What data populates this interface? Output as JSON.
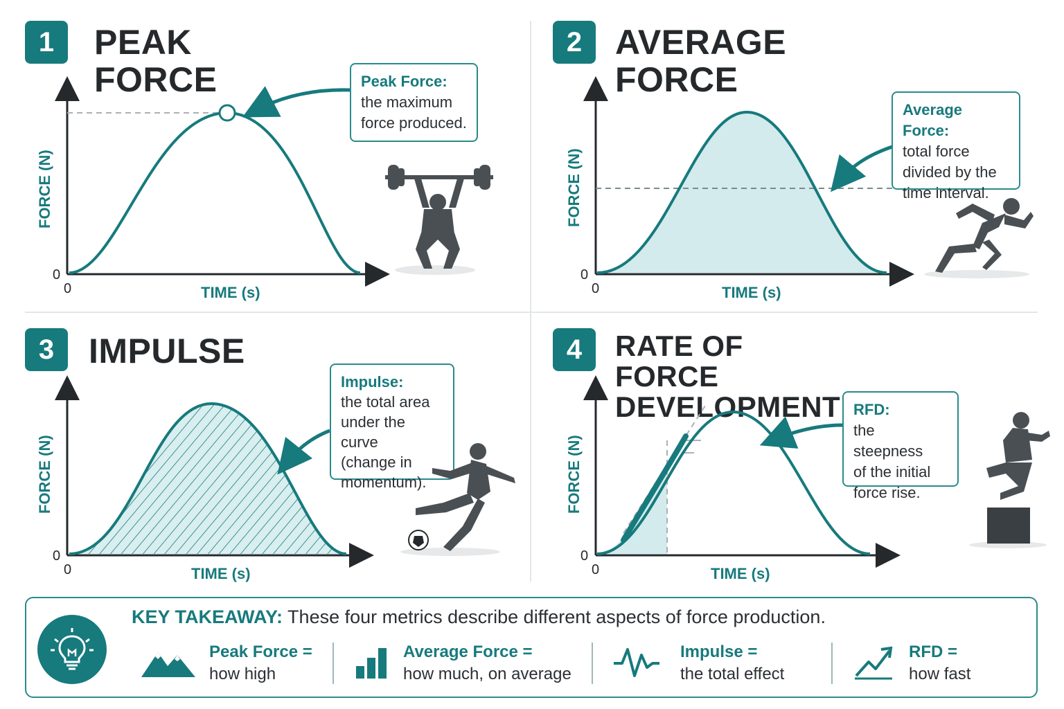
{
  "panels": [
    {
      "number": "1",
      "title": "PEAK FORCE",
      "y_label": "FORCE (N)",
      "x_label": "TIME (s)",
      "origin_y": "0",
      "origin_x": "0",
      "callout": {
        "title": "Peak Force:",
        "lines": [
          "the maximum",
          "force produced."
        ]
      },
      "athlete_icon": "weightlifter-icon"
    },
    {
      "number": "2",
      "title": "AVERAGE FORCE",
      "y_label": "FORCE (N)",
      "x_label": "TIME (s)",
      "origin_y": "0",
      "origin_x": "0",
      "callout": {
        "title": "Average Force:",
        "lines": [
          "total force",
          "divided by the",
          "time interval."
        ]
      },
      "athlete_icon": "sprinter-icon"
    },
    {
      "number": "3",
      "title": "IMPULSE",
      "y_label": "FORCE (N)",
      "x_label": "TIME (s)",
      "origin_y": "0",
      "origin_x": "0",
      "callout": {
        "title": "Impulse:",
        "lines": [
          "the total area",
          "under the curve",
          "(change in",
          "momentum)."
        ]
      },
      "athlete_icon": "soccer-player-icon"
    },
    {
      "number": "4",
      "title_lines": [
        "RATE OF FORCE",
        "DEVELOPMENT"
      ],
      "y_label": "FORCE (N)",
      "x_label": "TIME (s)",
      "origin_y": "0",
      "origin_x": "0",
      "callout": {
        "title": "RFD:",
        "lines": [
          "the steepness",
          "of the initial",
          "force rise."
        ]
      },
      "athlete_icon": "box-jumper-icon"
    }
  ],
  "takeaway": {
    "label": "KEY TAKEAWAY:",
    "text": " These four metrics describe different aspects of force production.",
    "metrics": [
      {
        "name": "Peak Force =",
        "desc": "how high",
        "icon": "mountain-peaks-icon"
      },
      {
        "name": "Average Force =",
        "desc": "how much, on average",
        "icon": "bar-chart-icon"
      },
      {
        "name": "Impulse =",
        "desc": "the total effect",
        "icon": "waveform-icon"
      },
      {
        "name": "RFD =",
        "desc": "how fast",
        "icon": "trend-up-icon"
      }
    ]
  },
  "colors": {
    "teal": "#177a7d",
    "teal_light": "#d3ebec",
    "dark": "#25292c",
    "silhouette": "#4a4f53"
  }
}
